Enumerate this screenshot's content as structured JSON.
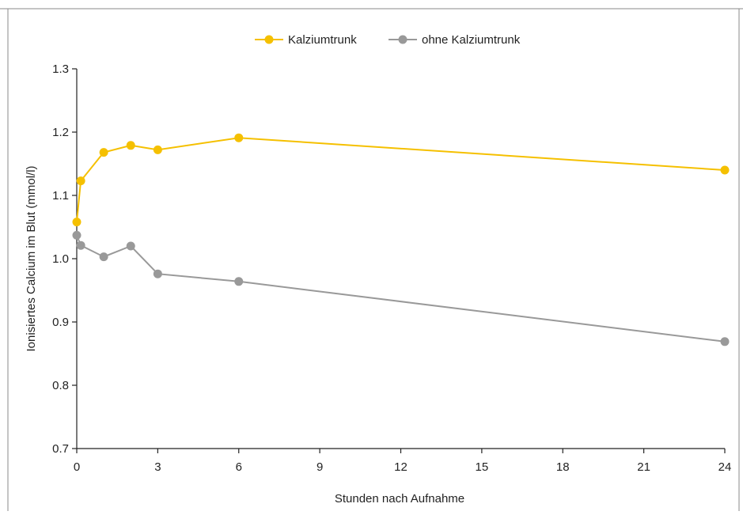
{
  "chart_data": {
    "type": "line",
    "title": "",
    "xlabel": "Stunden nach Aufnahme",
    "ylabel": "Ionisiertes Calcium im Blut (mmol/l)",
    "xlim": [
      0,
      24
    ],
    "ylim": [
      0.7,
      1.3
    ],
    "x_ticks": [
      0,
      3,
      6,
      9,
      12,
      15,
      18,
      21,
      24
    ],
    "x_tick_labels": [
      "0",
      "3",
      "6",
      "9",
      "12",
      "15",
      "18",
      "21",
      "24"
    ],
    "y_ticks": [
      0.7,
      0.8,
      0.9,
      1.0,
      1.1,
      1.2,
      1.3
    ],
    "y_tick_labels": [
      "0.7",
      "0.8",
      "0.9",
      "1.0",
      "1.1",
      "1.2",
      "1.3"
    ],
    "grid": false,
    "legend_position": "top-center",
    "series": [
      {
        "name": "Kalziumtrunk",
        "color": "#F5C000",
        "points": [
          {
            "x": 0,
            "y": 1.058
          },
          {
            "x": 0.15,
            "y": 1.123
          },
          {
            "x": 1,
            "y": 1.168
          },
          {
            "x": 2,
            "y": 1.179
          },
          {
            "x": 3,
            "y": 1.172
          },
          {
            "x": 6,
            "y": 1.191
          },
          {
            "x": 24,
            "y": 1.14
          }
        ]
      },
      {
        "name": "ohne Kalziumtrunk",
        "color": "#999999",
        "points": [
          {
            "x": 0,
            "y": 1.037
          },
          {
            "x": 0.15,
            "y": 1.021
          },
          {
            "x": 1,
            "y": 1.003
          },
          {
            "x": 2,
            "y": 1.02
          },
          {
            "x": 3,
            "y": 0.976
          },
          {
            "x": 6,
            "y": 0.964
          },
          {
            "x": 24,
            "y": 0.869
          }
        ]
      }
    ]
  }
}
